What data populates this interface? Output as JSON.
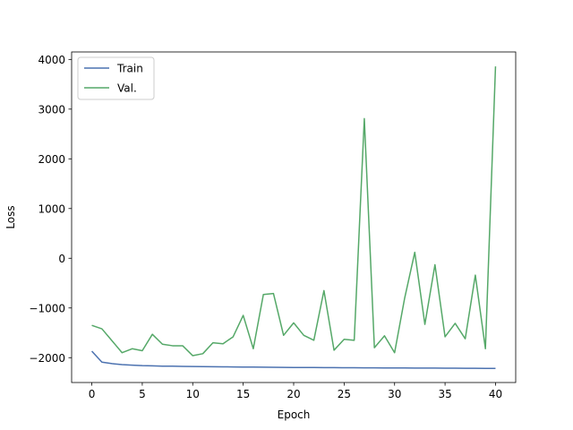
{
  "chart_data": {
    "type": "line",
    "title": "",
    "xlabel": "Epoch",
    "ylabel": "Loss",
    "xlim": [
      -2,
      42
    ],
    "ylim": [
      -2500,
      4150
    ],
    "xticks": [
      0,
      5,
      10,
      15,
      20,
      25,
      30,
      35,
      40
    ],
    "yticks": [
      -2000,
      -1000,
      0,
      1000,
      2000,
      3000,
      4000
    ],
    "grid": false,
    "legend_position": "top-left",
    "x": [
      0,
      1,
      2,
      3,
      4,
      5,
      6,
      7,
      8,
      9,
      10,
      11,
      12,
      13,
      14,
      15,
      16,
      17,
      18,
      19,
      20,
      21,
      22,
      23,
      24,
      25,
      26,
      27,
      28,
      29,
      30,
      31,
      32,
      33,
      34,
      35,
      36,
      37,
      38,
      39,
      40
    ],
    "series": [
      {
        "name": "Train",
        "color": "#4c72b0",
        "values": [
          -1870,
          -2090,
          -2120,
          -2140,
          -2150,
          -2160,
          -2165,
          -2170,
          -2172,
          -2175,
          -2177,
          -2180,
          -2182,
          -2184,
          -2186,
          -2188,
          -2190,
          -2192,
          -2194,
          -2196,
          -2197,
          -2198,
          -2199,
          -2200,
          -2201,
          -2202,
          -2203,
          -2204,
          -2205,
          -2206,
          -2207,
          -2208,
          -2209,
          -2210,
          -2210,
          -2211,
          -2212,
          -2213,
          -2214,
          -2215,
          -2216
        ]
      },
      {
        "name": "Val.",
        "color": "#55a868",
        "values": [
          -1350,
          -1420,
          -1660,
          -1900,
          -1820,
          -1860,
          -1530,
          -1730,
          -1760,
          -1760,
          -1960,
          -1920,
          -1700,
          -1720,
          -1580,
          -1150,
          -1820,
          -730,
          -710,
          -1550,
          -1300,
          -1550,
          -1650,
          -650,
          -1850,
          -1630,
          -1650,
          2810,
          -1800,
          -1560,
          -1900,
          -800,
          120,
          -1330,
          -130,
          -1580,
          -1310,
          -1620,
          -340,
          -1820,
          3860
        ]
      }
    ]
  }
}
